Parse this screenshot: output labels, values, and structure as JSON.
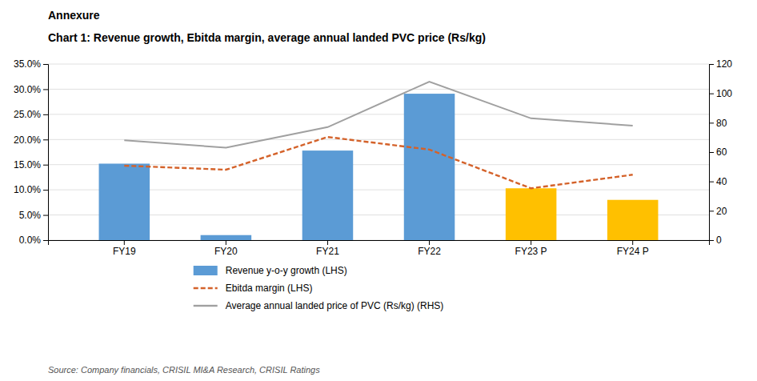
{
  "chart_data": {
    "type": "bar",
    "title": "Annexure",
    "subtitle": "Chart 1: Revenue growth, Ebitda margin, average annual landed PVC price (Rs/kg)",
    "annotations": [
      "Source: Company financials, CRISIL MI&A Research, CRISIL Ratings"
    ],
    "categories": [
      "FY19",
      "FY20",
      "FY21",
      "FY22",
      "FY23 P",
      "FY24 P"
    ],
    "series": [
      {
        "name": "Revenue y-o-y growth (LHS)",
        "type": "bar",
        "color": "#5b9bd5",
        "colors": [
          "#5b9bd5",
          "#5b9bd5",
          "#5b9bd5",
          "#5b9bd5",
          "#ffc000",
          "#ffc000"
        ],
        "values": [
          0.152,
          0.01,
          0.178,
          0.291,
          0.103,
          0.08
        ]
      },
      {
        "name": "Ebitda margin (LHS)",
        "type": "line",
        "color": "#d4622a",
        "line_style": "dashed",
        "values": [
          0.148,
          0.14,
          0.205,
          0.18,
          0.103,
          0.13
        ]
      },
      {
        "name": "Average annual landed price of PVC (Rs/kg) (RHS)",
        "type": "line",
        "color": "#a0a0a0",
        "line_style": "solid",
        "axis": "y2",
        "values": [
          68,
          63,
          77,
          108,
          83,
          78
        ]
      }
    ],
    "ylim": [
      0,
      0.35
    ],
    "yticks": [
      {
        "value": 0.0,
        "label": "0.0%"
      },
      {
        "value": 0.05,
        "label": "5.0%"
      },
      {
        "value": 0.1,
        "label": "10.0%"
      },
      {
        "value": 0.15,
        "label": "15.0%"
      },
      {
        "value": 0.2,
        "label": "20.0%"
      },
      {
        "value": 0.25,
        "label": "25.0%"
      },
      {
        "value": 0.3,
        "label": "30.0%"
      },
      {
        "value": 0.35,
        "label": "35.0%"
      }
    ],
    "y2lim": [
      0,
      120
    ],
    "y2ticks": [
      0,
      20,
      40,
      60,
      80,
      100,
      120
    ],
    "grid": true,
    "legend": "bottom"
  }
}
